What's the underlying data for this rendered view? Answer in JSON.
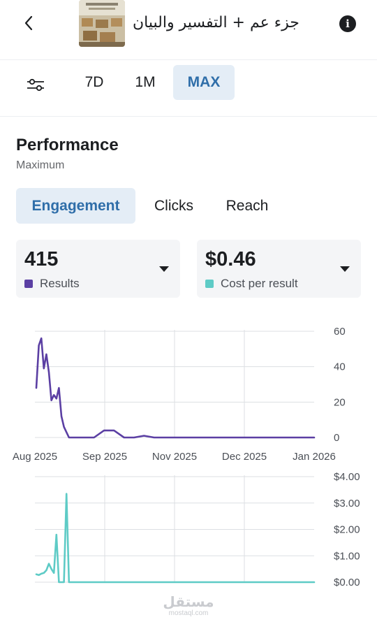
{
  "header": {
    "title": "جزء عم + التفسير والبيان",
    "back_icon": "chevron-left-icon",
    "info_icon": "info-icon",
    "info_glyph": "i"
  },
  "date_range": {
    "options": [
      "7D",
      "1M",
      "MAX"
    ],
    "selected": "MAX"
  },
  "performance": {
    "title": "Performance",
    "subtitle": "Maximum"
  },
  "metric_tabs": {
    "items": [
      "Engagement",
      "Clicks",
      "Reach"
    ],
    "selected": "Engagement"
  },
  "cards": [
    {
      "value": "415",
      "label": "Results",
      "color": "#5b3fa3"
    },
    {
      "value": "$0.46",
      "label": "Cost per result",
      "color": "#5ecbc6"
    }
  ],
  "chart_data": [
    {
      "type": "line",
      "series": [
        {
          "color": "#5b3fa3",
          "values": [
            28,
            52,
            56,
            39,
            47,
            37,
            21,
            24,
            22,
            28,
            12,
            6,
            3,
            0,
            0,
            0,
            0,
            0,
            4,
            4,
            0,
            0,
            1,
            0,
            0,
            0,
            0,
            0,
            0,
            0,
            0,
            0,
            0,
            0,
            0,
            0,
            0,
            0,
            0,
            0
          ]
        }
      ],
      "x_start": "2025-08-01",
      "x_end": "2026-01-01",
      "x_ticks": [
        "Aug 2025",
        "Sep 2025",
        "Nov 2025",
        "Dec 2025",
        "Jan 2026"
      ],
      "y_ticks": [
        "60",
        "40",
        "20",
        "0"
      ],
      "ylim": [
        0,
        60
      ],
      "grid": true
    },
    {
      "type": "line",
      "series": [
        {
          "color": "#5ecbc6",
          "values": [
            0.3,
            0.27,
            0.32,
            0.35,
            0.45,
            0.7,
            0.5,
            0.35,
            1.8,
            0,
            0,
            0,
            3.35,
            0,
            0,
            0,
            0,
            0,
            0,
            0,
            0,
            0,
            0,
            0,
            0,
            0,
            0,
            0,
            0,
            0,
            0,
            0,
            0,
            0,
            0,
            0,
            0,
            0,
            0,
            0
          ]
        }
      ],
      "x_start": "2025-08-01",
      "x_end": "2026-01-01",
      "y_ticks": [
        "$4.00",
        "$3.00",
        "$2.00",
        "$1.00",
        "$0.00"
      ],
      "ylim": [
        0,
        4
      ],
      "grid": true
    }
  ],
  "watermark": {
    "arabic": "مستقل",
    "latin": "mostaql.com"
  }
}
